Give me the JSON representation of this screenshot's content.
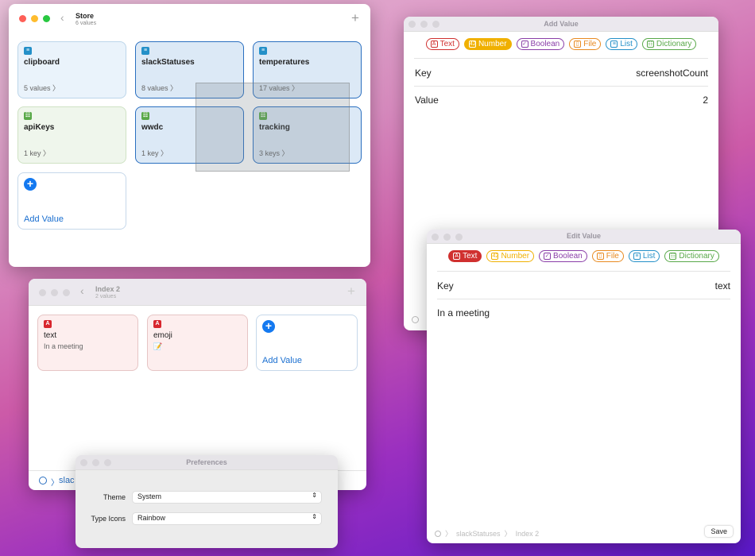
{
  "colors": {
    "text": "#d0302f",
    "number": "#f0b000",
    "boolean": "#8a3ea8",
    "file": "#e88a20",
    "list": "#2490c8",
    "dictionary": "#58a848",
    "accent": "#1479f0"
  },
  "type_pills": [
    {
      "label": "Text",
      "icon": "A"
    },
    {
      "label": "Number",
      "icon": "42"
    },
    {
      "label": "Boolean",
      "icon": "✓"
    },
    {
      "label": "File",
      "icon": "▯"
    },
    {
      "label": "List",
      "icon": "≡"
    },
    {
      "label": "Dictionary",
      "icon": "☷"
    }
  ],
  "store": {
    "title": "Store",
    "subtitle": "6 values",
    "cards": [
      {
        "name": "clipboard",
        "count": "5 values 〉",
        "type": "list"
      },
      {
        "name": "slackStatuses",
        "count": "8 values 〉",
        "type": "list",
        "selected": true
      },
      {
        "name": "temperatures",
        "count": "17 values 〉",
        "type": "list",
        "selected": true
      },
      {
        "name": "apiKeys",
        "count": "1 key 〉",
        "type": "dictionary"
      },
      {
        "name": "wwdc",
        "count": "1 key 〉",
        "type": "dictionary",
        "selected": true
      },
      {
        "name": "tracking",
        "count": "3 keys 〉",
        "type": "dictionary",
        "selected": true
      }
    ],
    "add_label": "Add Value"
  },
  "add_value": {
    "title": "Add Value",
    "selected_type": "Number",
    "key_label": "Key",
    "key_value": "screenshotCount",
    "value_label": "Value",
    "value": "2"
  },
  "edit_value": {
    "title": "Edit Value",
    "selected_type": "Text",
    "key_label": "Key",
    "key_value": "text",
    "text_value": "In a meeting",
    "breadcrumb": [
      "slackStatuses",
      "Index 2"
    ],
    "save_label": "Save"
  },
  "index2": {
    "title": "Index 2",
    "subtitle": "2 values",
    "cards": [
      {
        "name": "text",
        "value": "In a meeting"
      },
      {
        "name": "emoji",
        "value": "📝"
      }
    ],
    "add_label": "Add Value",
    "breadcrumb": "slac"
  },
  "preferences": {
    "title": "Preferences",
    "theme_label": "Theme",
    "theme_value": "System",
    "icons_label": "Type Icons",
    "icons_value": "Rainbow"
  }
}
